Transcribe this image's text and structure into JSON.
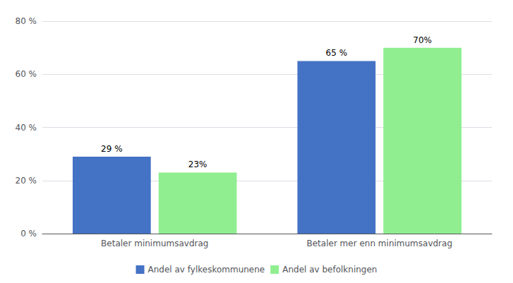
{
  "chart_data": {
    "type": "bar",
    "categories": [
      "Betaler minimumsavdrag",
      "Betaler mer enn minimumsavdrag"
    ],
    "series": [
      {
        "name": "Andel av fylkeskommunene",
        "color": "#4472C4",
        "values": [
          29,
          65
        ],
        "value_labels": [
          "29 %",
          "65 %"
        ]
      },
      {
        "name": "Andel av befolkningen",
        "color": "#90EE90",
        "values": [
          23,
          70
        ],
        "value_labels": [
          "23%",
          "70%"
        ]
      }
    ],
    "ylim": [
      0,
      80
    ],
    "yticks": [
      {
        "value": 0,
        "label": "0 %"
      },
      {
        "value": 20,
        "label": "20 %"
      },
      {
        "value": 40,
        "label": "40 %"
      },
      {
        "value": 60,
        "label": "60 %"
      },
      {
        "value": 80,
        "label": "80 %"
      }
    ],
    "grid": true,
    "legend": "bottom",
    "data_labels": true
  }
}
